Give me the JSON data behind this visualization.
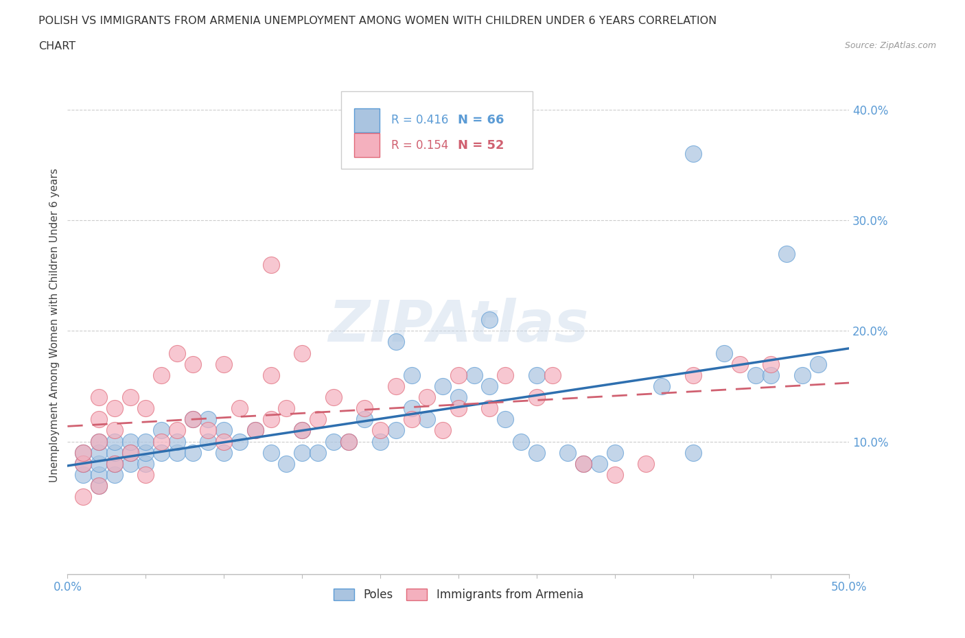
{
  "title_line1": "POLISH VS IMMIGRANTS FROM ARMENIA UNEMPLOYMENT AMONG WOMEN WITH CHILDREN UNDER 6 YEARS CORRELATION",
  "title_line2": "CHART",
  "source_text": "Source: ZipAtlas.com",
  "ylabel": "Unemployment Among Women with Children Under 6 years",
  "xlim": [
    0.0,
    0.5
  ],
  "ylim": [
    -0.02,
    0.43
  ],
  "xticks": [
    0.0,
    0.05,
    0.1,
    0.15,
    0.2,
    0.25,
    0.3,
    0.35,
    0.4,
    0.45,
    0.5
  ],
  "xticklabels": [
    "0.0%",
    "",
    "",
    "",
    "",
    "",
    "",
    "",
    "",
    "",
    "50.0%"
  ],
  "yticks": [
    0.0,
    0.1,
    0.2,
    0.3,
    0.4
  ],
  "yticklabels": [
    "",
    "10.0%",
    "20.0%",
    "30.0%",
    "40.0%"
  ],
  "grid_color": "#cccccc",
  "poles_color": "#aac4e0",
  "poles_edge_color": "#5b9bd5",
  "armenia_color": "#f4b0be",
  "armenia_edge_color": "#e06878",
  "poles_line_color": "#2e6faf",
  "armenia_line_color": "#d06070",
  "legend_R_poles": "R = 0.416",
  "legend_N_poles": "N = 66",
  "legend_R_armenia": "R = 0.154",
  "legend_N_armenia": "N = 52",
  "watermark": "ZIPAtlas",
  "tick_color": "#5b9bd5",
  "background_color": "#ffffff",
  "poles_x": [
    0.01,
    0.01,
    0.01,
    0.02,
    0.02,
    0.02,
    0.02,
    0.02,
    0.03,
    0.03,
    0.03,
    0.03,
    0.04,
    0.04,
    0.04,
    0.05,
    0.05,
    0.05,
    0.06,
    0.06,
    0.07,
    0.07,
    0.08,
    0.08,
    0.09,
    0.09,
    0.1,
    0.1,
    0.11,
    0.12,
    0.13,
    0.14,
    0.15,
    0.15,
    0.16,
    0.17,
    0.18,
    0.19,
    0.2,
    0.21,
    0.22,
    0.22,
    0.23,
    0.24,
    0.25,
    0.26,
    0.27,
    0.28,
    0.29,
    0.3,
    0.3,
    0.32,
    0.33,
    0.34,
    0.35,
    0.38,
    0.4,
    0.4,
    0.42,
    0.44,
    0.45,
    0.46,
    0.47,
    0.48,
    0.27,
    0.21
  ],
  "poles_y": [
    0.07,
    0.08,
    0.09,
    0.06,
    0.07,
    0.08,
    0.09,
    0.1,
    0.07,
    0.08,
    0.09,
    0.1,
    0.08,
    0.09,
    0.1,
    0.08,
    0.09,
    0.1,
    0.09,
    0.11,
    0.09,
    0.1,
    0.09,
    0.12,
    0.1,
    0.12,
    0.09,
    0.11,
    0.1,
    0.11,
    0.09,
    0.08,
    0.09,
    0.11,
    0.09,
    0.1,
    0.1,
    0.12,
    0.1,
    0.11,
    0.13,
    0.16,
    0.12,
    0.15,
    0.14,
    0.16,
    0.15,
    0.12,
    0.1,
    0.16,
    0.09,
    0.09,
    0.08,
    0.08,
    0.09,
    0.15,
    0.36,
    0.09,
    0.18,
    0.16,
    0.16,
    0.27,
    0.16,
    0.17,
    0.21,
    0.19
  ],
  "armenia_x": [
    0.01,
    0.01,
    0.01,
    0.02,
    0.02,
    0.02,
    0.02,
    0.03,
    0.03,
    0.03,
    0.04,
    0.04,
    0.05,
    0.05,
    0.06,
    0.06,
    0.07,
    0.07,
    0.08,
    0.08,
    0.09,
    0.1,
    0.1,
    0.11,
    0.12,
    0.13,
    0.13,
    0.14,
    0.15,
    0.15,
    0.16,
    0.17,
    0.18,
    0.19,
    0.2,
    0.21,
    0.22,
    0.23,
    0.24,
    0.25,
    0.25,
    0.27,
    0.28,
    0.3,
    0.31,
    0.33,
    0.35,
    0.37,
    0.4,
    0.43,
    0.45,
    0.13
  ],
  "armenia_y": [
    0.05,
    0.08,
    0.09,
    0.06,
    0.1,
    0.12,
    0.14,
    0.08,
    0.11,
    0.13,
    0.09,
    0.14,
    0.07,
    0.13,
    0.1,
    0.16,
    0.11,
    0.18,
    0.12,
    0.17,
    0.11,
    0.1,
    0.17,
    0.13,
    0.11,
    0.12,
    0.16,
    0.13,
    0.11,
    0.18,
    0.12,
    0.14,
    0.1,
    0.13,
    0.11,
    0.15,
    0.12,
    0.14,
    0.11,
    0.13,
    0.16,
    0.13,
    0.16,
    0.14,
    0.16,
    0.08,
    0.07,
    0.08,
    0.16,
    0.17,
    0.17,
    0.26
  ]
}
